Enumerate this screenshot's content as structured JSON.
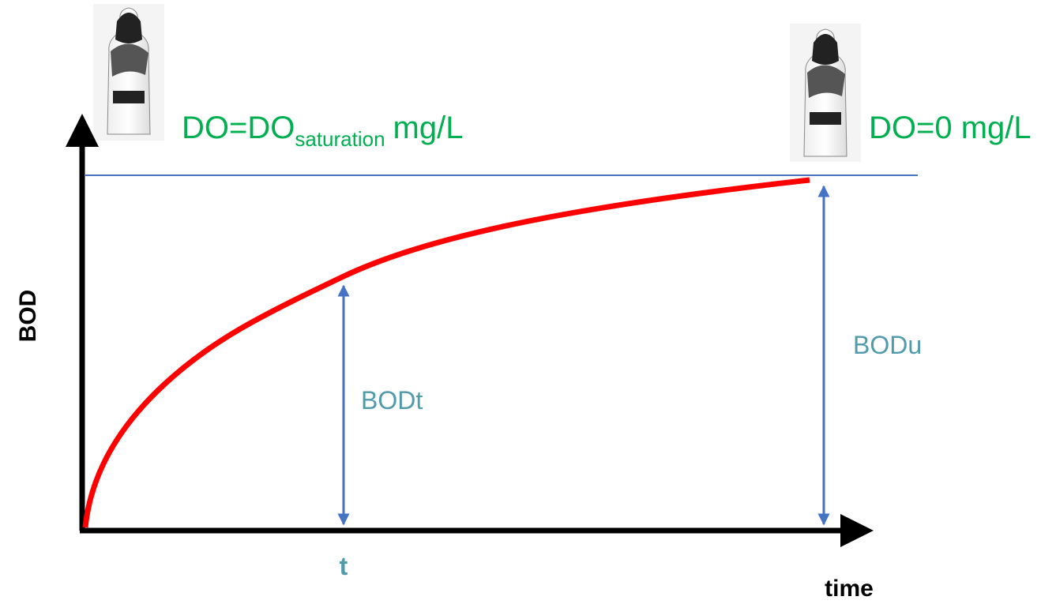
{
  "left_label": {
    "main": "DO=DO",
    "subscript": "saturation",
    "unit": "mg/L"
  },
  "right_label": "DO=0 mg/L",
  "y_axis_label": "BOD",
  "x_axis_label": "time",
  "t_label": "t",
  "bodt_label": "BODt",
  "bodu_label": "BODu"
}
